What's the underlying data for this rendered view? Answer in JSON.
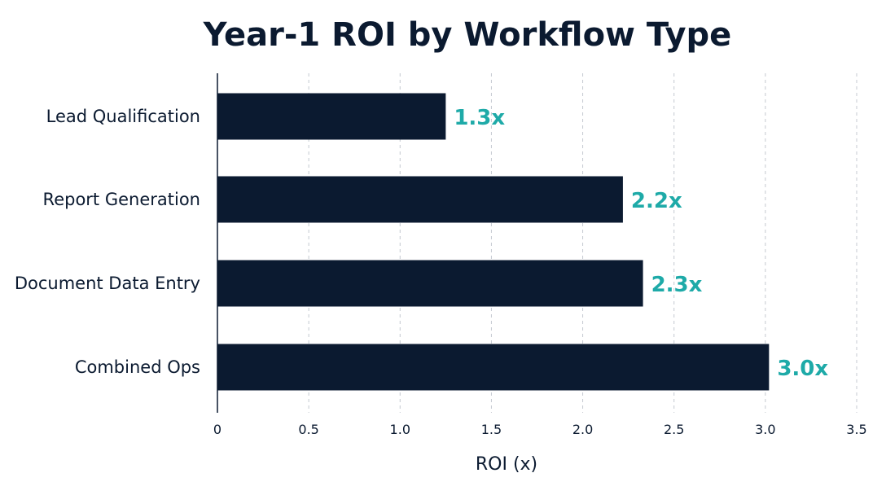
{
  "colors": {
    "bar": "#0b1a30",
    "value_label": "#1eaaa8",
    "text": "#0b1a30",
    "grid": "#c4c9d0",
    "axis": "#0b1a30"
  },
  "chart_data": {
    "type": "bar",
    "orientation": "horizontal",
    "title": "Year-1 ROI by Workflow Type",
    "xlabel": "ROI (x)",
    "ylabel": "",
    "xlim": [
      0,
      3.5
    ],
    "x_ticks": [
      0,
      0.5,
      1.0,
      1.5,
      2.0,
      2.5,
      3.0,
      3.5
    ],
    "x_tick_labels": [
      "0",
      "0.5",
      "1.0",
      "1.5",
      "2.0",
      "2.5",
      "3.0",
      "3.5"
    ],
    "grid": "vertical dashed",
    "categories": [
      "Lead Qualification",
      "Report Generation",
      "Document Data Entry",
      "Combined Ops"
    ],
    "values": [
      1.25,
      2.22,
      2.33,
      3.02
    ],
    "value_labels": [
      "1.3x",
      "2.2x",
      "2.3x",
      "3.0x"
    ]
  }
}
